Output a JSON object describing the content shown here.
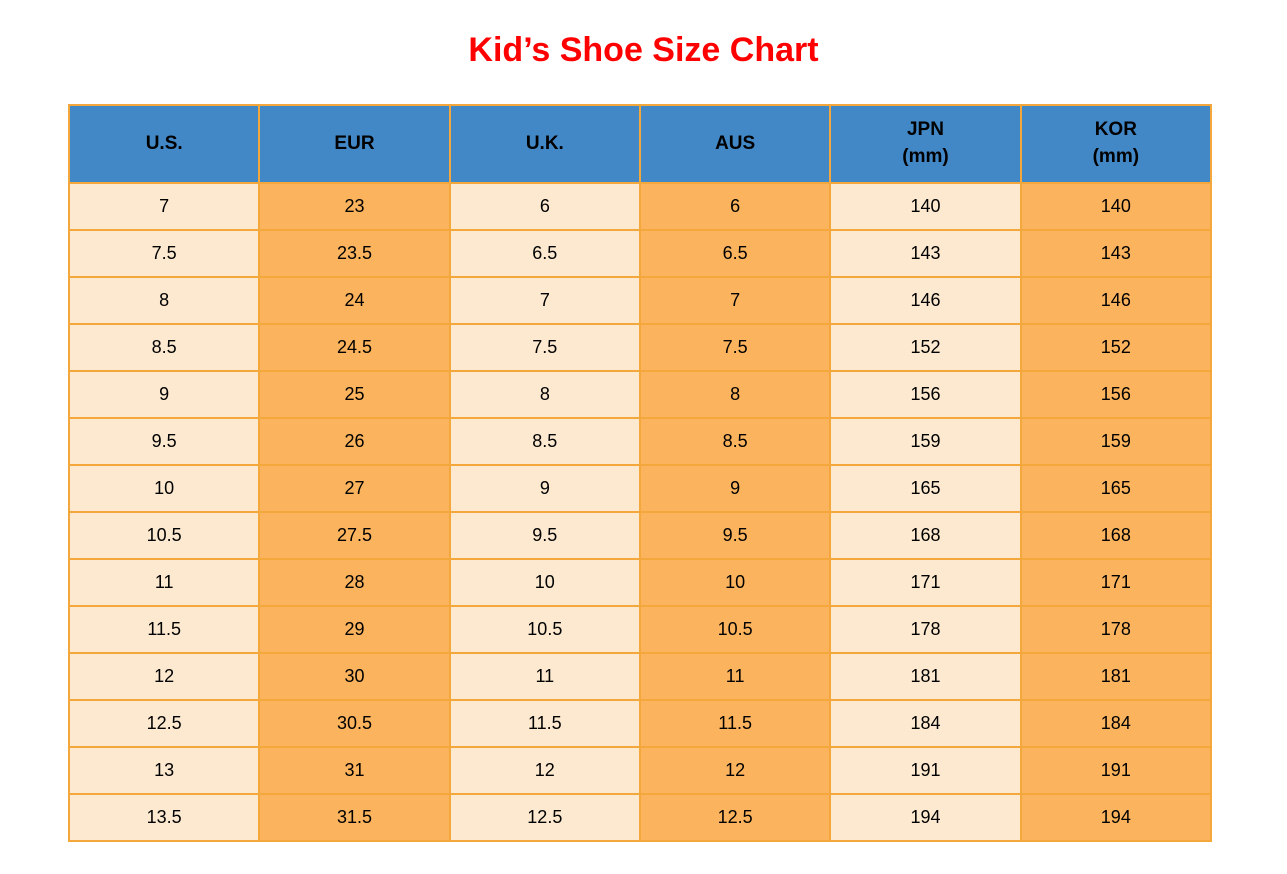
{
  "title": "Kid’s Shoe Size Chart",
  "colors": {
    "title_red": "#FF0000",
    "header_blue": "#4287C6",
    "cell_cream": "#FCE9CF",
    "cell_orange": "#FBB45D",
    "grid_orange": "#F4A73B",
    "text_black": "#000000"
  },
  "table": {
    "headers": [
      {
        "label": "U.S.",
        "sublabel": ""
      },
      {
        "label": "EUR",
        "sublabel": ""
      },
      {
        "label": "U.K.",
        "sublabel": ""
      },
      {
        "label": "AUS",
        "sublabel": ""
      },
      {
        "label": "JPN",
        "sublabel": "(mm)"
      },
      {
        "label": "KOR",
        "sublabel": "(mm)"
      }
    ]
  },
  "chart_data": {
    "type": "table",
    "title": "Kid’s Shoe Size Chart",
    "columns": [
      "U.S.",
      "EUR",
      "U.K.",
      "AUS",
      "JPN (mm)",
      "KOR (mm)"
    ],
    "rows": [
      [
        7,
        23,
        6,
        6,
        140,
        140
      ],
      [
        7.5,
        23.5,
        6.5,
        6.5,
        143,
        143
      ],
      [
        8,
        24,
        7,
        7,
        146,
        146
      ],
      [
        8.5,
        24.5,
        7.5,
        7.5,
        152,
        152
      ],
      [
        9,
        25,
        8,
        8,
        156,
        156
      ],
      [
        9.5,
        26,
        8.5,
        8.5,
        159,
        159
      ],
      [
        10,
        27,
        9,
        9,
        165,
        165
      ],
      [
        10.5,
        27.5,
        9.5,
        9.5,
        168,
        168
      ],
      [
        11,
        28,
        10,
        10,
        171,
        171
      ],
      [
        11.5,
        29,
        10.5,
        10.5,
        178,
        178
      ],
      [
        12,
        30,
        11,
        11,
        181,
        181
      ],
      [
        12.5,
        30.5,
        11.5,
        11.5,
        184,
        184
      ],
      [
        13,
        31,
        12,
        12,
        191,
        191
      ],
      [
        13.5,
        31.5,
        12.5,
        12.5,
        194,
        194
      ]
    ]
  }
}
